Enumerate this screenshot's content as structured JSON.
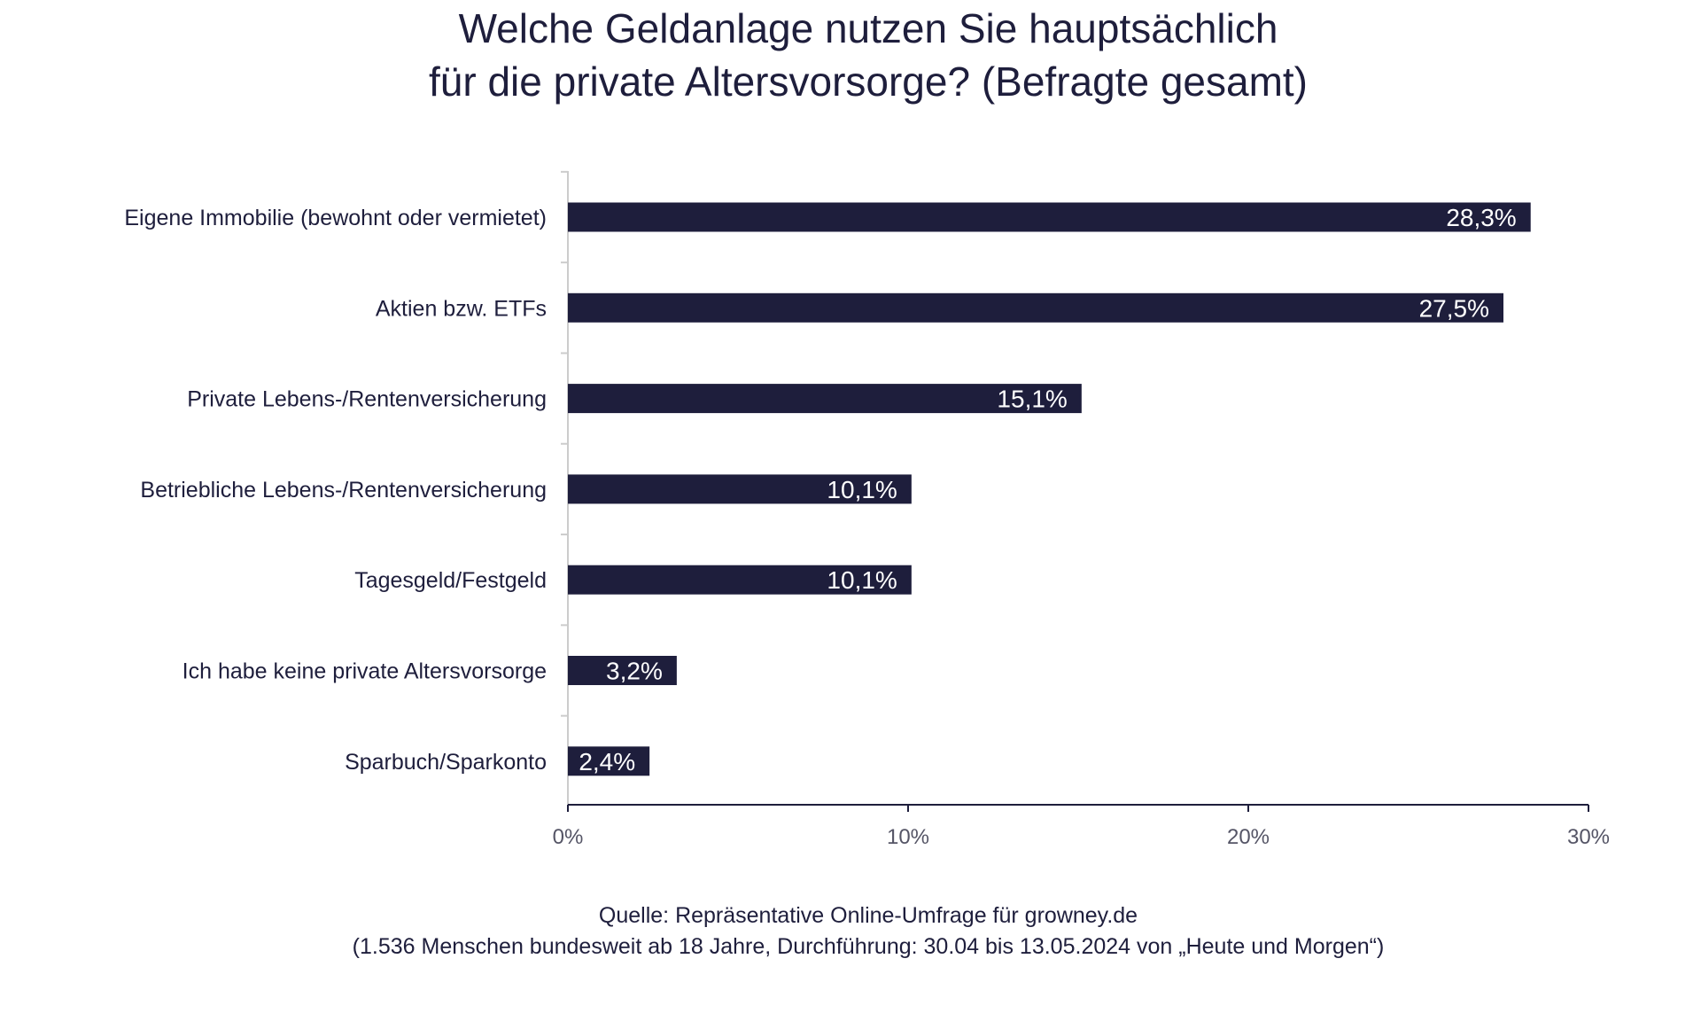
{
  "title_lines": [
    "Welche Geldanlage nutzen Sie hauptsächlich",
    "für die private Altersvorsorge? (Befragte gesamt)"
  ],
  "colors": {
    "bar": "#1e1e3c",
    "bar_label": "#ffffff",
    "axis": "#cccccc",
    "text": "#1e1e3c",
    "tick_label": "#555566"
  },
  "chart_data": {
    "type": "bar",
    "orientation": "horizontal",
    "categories": [
      "Eigene Immobilie (bewohnt oder vermietet)",
      "Aktien bzw. ETFs",
      "Private Lebens-/Rentenversicherung",
      "Betriebliche Lebens-/Rentenversicherung",
      "Tagesgeld/Festgeld",
      "Ich habe keine private Altersvorsorge",
      "Sparbuch/Sparkonto"
    ],
    "values": [
      28.3,
      27.5,
      15.1,
      10.1,
      10.1,
      3.2,
      2.4
    ],
    "value_labels": [
      "28,3%",
      "27,5%",
      "15,1%",
      "10,1%",
      "10,1%",
      "3,2%",
      "2,4%"
    ],
    "xlim": [
      0,
      30
    ],
    "xticks": [
      0,
      10,
      20,
      30
    ],
    "xtick_labels": [
      "0%",
      "10%",
      "20%",
      "30%"
    ],
    "grid": false,
    "legend": "none"
  },
  "source_lines": [
    "Quelle: Repräsentative Online-Umfrage für growney.de",
    "(1.536 Menschen bundesweit ab 18 Jahre, Durchführung: 30.04 bis 13.05.2024 von „Heute und Morgen“)"
  ]
}
